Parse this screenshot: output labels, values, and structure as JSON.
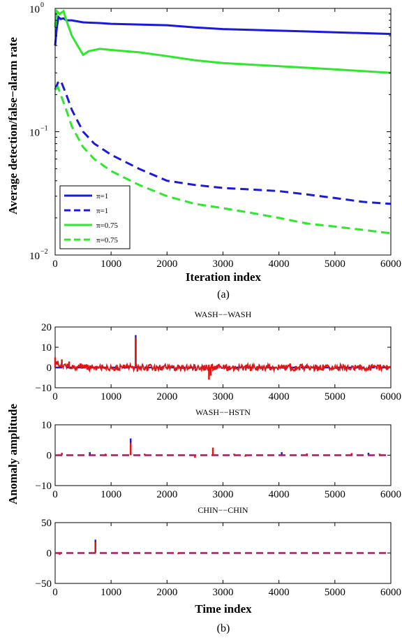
{
  "figure": {
    "caption_a": "(a)",
    "caption_b": "(b)"
  },
  "colors": {
    "blue": "#1a1adb",
    "green": "#2ee82e",
    "red": "#e01515"
  },
  "chart_data": [
    {
      "type": "line",
      "panel": "a",
      "xlabel": "Iteration index",
      "ylabel": "Average detection/false−alarm rate",
      "xlim": [
        0,
        6000
      ],
      "ylim": [
        0.01,
        1
      ],
      "yscale": "log",
      "x_ticks": [
        "0",
        "1000",
        "2000",
        "3000",
        "4000",
        "5000",
        "6000"
      ],
      "y_ticks": [
        {
          "base": "10",
          "exp": "0",
          "value": 1
        },
        {
          "base": "10",
          "exp": "−1",
          "value": 0.1
        },
        {
          "base": "10",
          "exp": "−2",
          "value": 0.01
        }
      ],
      "legend": {
        "placement": "bottom-left",
        "entries": [
          {
            "label": "π=1",
            "color": "#1a1adb",
            "style": "solid"
          },
          {
            "label": "π=1",
            "color": "#1a1adb",
            "style": "dashed"
          },
          {
            "label": "π=0.75",
            "color": "#2ee82e",
            "style": "solid"
          },
          {
            "label": "π=0.75",
            "color": "#2ee82e",
            "style": "dashed"
          }
        ]
      },
      "series": [
        {
          "color": "#1a1adb",
          "style": "solid",
          "x": [
            0,
            30,
            60,
            100,
            150,
            200,
            300,
            500,
            800,
            1000,
            1500,
            2000,
            2500,
            3000,
            3500,
            4000,
            4500,
            5000,
            5500,
            6000
          ],
          "y": [
            0.5,
            0.7,
            0.85,
            0.82,
            0.83,
            0.8,
            0.8,
            0.77,
            0.76,
            0.75,
            0.74,
            0.73,
            0.7,
            0.68,
            0.67,
            0.66,
            0.65,
            0.64,
            0.63,
            0.62
          ]
        },
        {
          "color": "#1a1adb",
          "style": "dashed",
          "x": [
            0,
            50,
            100,
            200,
            300,
            500,
            700,
            1000,
            1500,
            2000,
            2500,
            3000,
            3500,
            4000,
            4500,
            5000,
            5500,
            6000
          ],
          "y": [
            0.22,
            0.25,
            0.26,
            0.2,
            0.15,
            0.1,
            0.08,
            0.065,
            0.05,
            0.04,
            0.037,
            0.035,
            0.034,
            0.033,
            0.031,
            0.029,
            0.027,
            0.026
          ]
        },
        {
          "color": "#2ee82e",
          "style": "solid",
          "x": [
            0,
            30,
            80,
            150,
            200,
            300,
            400,
            500,
            600,
            800,
            1000,
            1500,
            2000,
            2500,
            3000,
            3500,
            4000,
            4500,
            5000,
            5500,
            6000
          ],
          "y": [
            0.7,
            0.95,
            0.9,
            0.95,
            0.8,
            0.6,
            0.5,
            0.42,
            0.45,
            0.47,
            0.46,
            0.44,
            0.41,
            0.38,
            0.36,
            0.35,
            0.34,
            0.33,
            0.32,
            0.31,
            0.3
          ]
        },
        {
          "color": "#2ee82e",
          "style": "dashed",
          "x": [
            0,
            50,
            100,
            200,
            300,
            500,
            700,
            1000,
            1500,
            2000,
            2500,
            3000,
            3500,
            4000,
            4500,
            5000,
            5500,
            6000
          ],
          "y": [
            0.22,
            0.23,
            0.2,
            0.15,
            0.11,
            0.075,
            0.06,
            0.048,
            0.037,
            0.03,
            0.026,
            0.024,
            0.022,
            0.02,
            0.018,
            0.017,
            0.016,
            0.015
          ]
        }
      ]
    },
    {
      "type": "line",
      "panel": "b1",
      "title": "WASH−−WASH",
      "xlim": [
        0,
        6000
      ],
      "ylim": [
        -10,
        20
      ],
      "x_ticks": [
        "0",
        "1000",
        "2000",
        "3000",
        "4000",
        "5000",
        "6000"
      ],
      "y_ticks": [
        {
          "label": "20",
          "value": 20
        },
        {
          "label": "10",
          "value": 10
        },
        {
          "label": "0",
          "value": 0
        },
        {
          "label": "−10",
          "value": -10
        }
      ],
      "noise_amplitude": 1.5,
      "series": [
        {
          "color": "#1a1adb",
          "style": "dashed",
          "x": [
            0,
            6000
          ],
          "y": [
            0,
            0
          ],
          "spikes": [
            {
              "x": 1440,
              "y": 16
            }
          ]
        },
        {
          "color": "#e01515",
          "style": "solid",
          "noisy": true,
          "spikes": [
            {
              "x": 0,
              "y": 5
            },
            {
              "x": 120,
              "y": 4
            },
            {
              "x": 250,
              "y": 3
            },
            {
              "x": 450,
              "y": 2
            },
            {
              "x": 1440,
              "y": 15
            },
            {
              "x": 1470,
              "y": -2
            },
            {
              "x": 2750,
              "y": -6
            },
            {
              "x": 2780,
              "y": -4
            },
            {
              "x": 4200,
              "y": 2
            }
          ]
        }
      ]
    },
    {
      "type": "line",
      "panel": "b2",
      "title": "WASH−−HSTN",
      "xlim": [
        0,
        6000
      ],
      "ylim": [
        -10,
        10
      ],
      "x_ticks": [
        "0",
        "1000",
        "2000",
        "3000",
        "4000",
        "5000",
        "6000"
      ],
      "y_ticks": [
        {
          "label": "10",
          "value": 10
        },
        {
          "label": "0",
          "value": 0
        },
        {
          "label": "−10",
          "value": -10
        }
      ],
      "series": [
        {
          "color": "#1a1adb",
          "style": "dashed",
          "x": [
            0,
            6000
          ],
          "y": [
            0,
            0
          ],
          "spikes": [
            {
              "x": 1350,
              "y": 5.5
            },
            {
              "x": 620,
              "y": 1
            },
            {
              "x": 4050,
              "y": 1
            },
            {
              "x": 5600,
              "y": 0.8
            }
          ]
        },
        {
          "color": "#e01515",
          "style": "solid",
          "spikes": [
            {
              "x": 120,
              "y": 0.8
            },
            {
              "x": 900,
              "y": 0.5
            },
            {
              "x": 1350,
              "y": 4
            },
            {
              "x": 1600,
              "y": 0.5
            },
            {
              "x": 2500,
              "y": -0.8
            },
            {
              "x": 2820,
              "y": 2.5
            },
            {
              "x": 3200,
              "y": 0.5
            },
            {
              "x": 3400,
              "y": -0.5
            },
            {
              "x": 4500,
              "y": 0.6
            },
            {
              "x": 5300,
              "y": 0.7
            },
            {
              "x": 5800,
              "y": 0.5
            }
          ]
        }
      ]
    },
    {
      "type": "line",
      "panel": "b3",
      "title": "CHIN−−CHIN",
      "xlabel": "Time index",
      "xlim": [
        0,
        6000
      ],
      "ylim": [
        -50,
        50
      ],
      "x_ticks": [
        "0",
        "1000",
        "2000",
        "3000",
        "4000",
        "5000",
        "6000"
      ],
      "y_ticks": [
        {
          "label": "50",
          "value": 50
        },
        {
          "label": "0",
          "value": 0
        },
        {
          "label": "−50",
          "value": -50
        }
      ],
      "series": [
        {
          "color": "#1a1adb",
          "style": "dashed",
          "x": [
            0,
            6000
          ],
          "y": [
            0,
            0
          ],
          "spikes": [
            {
              "x": 720,
              "y": 22
            }
          ]
        },
        {
          "color": "#e01515",
          "style": "solid",
          "spikes": [
            {
              "x": 80,
              "y": -3
            },
            {
              "x": 720,
              "y": 18
            },
            {
              "x": 1200,
              "y": 1.5
            },
            {
              "x": 2200,
              "y": -2
            },
            {
              "x": 2850,
              "y": 1
            }
          ]
        }
      ]
    }
  ],
  "shared_ylabel_b": "Anomaly amplitude"
}
